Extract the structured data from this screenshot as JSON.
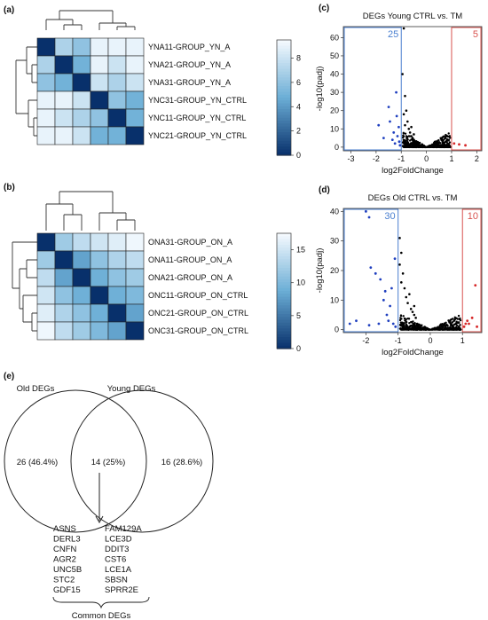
{
  "panels": {
    "a": {
      "label": "(a)"
    },
    "b": {
      "label": "(b)"
    },
    "c": {
      "label": "(c)"
    },
    "d": {
      "label": "(d)"
    },
    "e": {
      "label": "(e)"
    }
  },
  "chart_data": [
    {
      "panel": "(a)",
      "type": "heatmap",
      "rows": [
        "YNA11-GROUP_YN_A",
        "YNA21-GROUP_YN_A",
        "YNA31-GROUP_YN_A",
        "YNC31-GROUP_YN_CTRL",
        "YNC11-GROUP_YN_CTRL",
        "YNC21-GROUP_YN_CTRL"
      ],
      "values": [
        [
          0,
          7,
          6,
          9,
          9,
          9
        ],
        [
          7,
          0,
          5,
          9,
          8,
          9
        ],
        [
          6,
          5,
          0,
          8,
          7,
          8
        ],
        [
          9,
          9,
          8,
          0,
          6,
          5
        ],
        [
          9,
          8,
          7,
          6,
          0,
          5
        ],
        [
          9,
          9,
          8,
          5,
          5,
          0
        ]
      ],
      "colorbar_ticks": [
        0,
        2,
        4,
        6,
        8
      ],
      "colorbar_range": [
        0,
        9.5
      ],
      "colors": {
        "low": "#08306b",
        "mid": "#6baed6",
        "high": "#f7fbff"
      }
    },
    {
      "panel": "(b)",
      "type": "heatmap",
      "rows": [
        "ONA31-GROUP_ON_A",
        "ONA11-GROUP_ON_A",
        "ONA21-GROUP_ON_A",
        "ONC11-GROUP_ON_CTRL",
        "ONC21-GROUP_ON_CTRL",
        "ONC31-GROUP_ON_CTRL"
      ],
      "values": [
        [
          0,
          12,
          14,
          15,
          16,
          17
        ],
        [
          12,
          0,
          8,
          11,
          13,
          14
        ],
        [
          14,
          8,
          0,
          9,
          11,
          12
        ],
        [
          15,
          11,
          9,
          0,
          9,
          10
        ],
        [
          16,
          13,
          11,
          9,
          0,
          8
        ],
        [
          17,
          14,
          12,
          10,
          8,
          0
        ]
      ],
      "colorbar_ticks": [
        0,
        5,
        10,
        15
      ],
      "colorbar_range": [
        0,
        17.5
      ],
      "colors": {
        "low": "#08306b",
        "mid": "#6baed6",
        "high": "#f7fbff"
      }
    },
    {
      "panel": "(c)",
      "type": "scatter",
      "title": "DEGs Young CTRL vs. TM",
      "xlabel": "log2FoldChange",
      "ylabel": "-log10(padj)",
      "xlim": [
        -3.3,
        2.2
      ],
      "ylim": [
        -2,
        66
      ],
      "xticks": [
        -3,
        -2,
        -1,
        0,
        1,
        2
      ],
      "yticks": [
        0,
        10,
        20,
        30,
        40,
        50,
        60
      ],
      "down_count": "25",
      "up_count": "5",
      "thresholds": [
        -1,
        1
      ],
      "colors": {
        "down": "#1f3fbf",
        "up": "#d62728",
        "ns": "#000000",
        "down_box": "#4a7fd0",
        "up_box": "#d9534f"
      },
      "points_down": [
        [
          -1.9,
          12
        ],
        [
          -1.7,
          5
        ],
        [
          -1.5,
          22
        ],
        [
          -1.45,
          14
        ],
        [
          -1.35,
          4
        ],
        [
          -1.3,
          8
        ],
        [
          -1.25,
          2
        ],
        [
          -1.2,
          30
        ],
        [
          -1.18,
          17
        ],
        [
          -1.15,
          6
        ],
        [
          -1.1,
          11
        ],
        [
          -1.08,
          3
        ],
        [
          -1.05,
          1
        ]
      ],
      "points_up": [
        [
          1.1,
          2
        ],
        [
          1.3,
          1.5
        ],
        [
          1.55,
          1
        ]
      ],
      "points_ns": [
        [
          -0.95,
          40
        ],
        [
          -0.9,
          65
        ],
        [
          -0.85,
          28
        ],
        [
          -0.8,
          20
        ],
        [
          -0.75,
          14
        ],
        [
          -0.7,
          10
        ],
        [
          -0.65,
          8
        ],
        [
          -0.6,
          6
        ],
        [
          -0.55,
          5
        ],
        [
          -0.5,
          4
        ],
        [
          -0.45,
          3
        ],
        [
          -0.4,
          2.5
        ],
        [
          -0.9,
          18
        ],
        [
          -0.85,
          12
        ],
        [
          -0.6,
          11
        ],
        [
          -0.5,
          7
        ]
      ]
    },
    {
      "panel": "(d)",
      "type": "scatter",
      "title": "DEGs Old CTRL vs. TM",
      "xlabel": "log2FoldChange",
      "ylabel": "-log10(padj)",
      "xlim": [
        -2.7,
        1.6
      ],
      "ylim": [
        -1,
        41
      ],
      "xticks": [
        -2,
        -1,
        0,
        1
      ],
      "yticks": [
        0,
        10,
        20,
        30,
        40
      ],
      "down_count": "30",
      "up_count": "10",
      "thresholds": [
        -1,
        1
      ],
      "colors": {
        "down": "#1f3fbf",
        "up": "#d62728",
        "ns": "#000000",
        "down_box": "#4a7fd0",
        "up_box": "#d9534f"
      },
      "points_down": [
        [
          -2.0,
          40
        ],
        [
          -1.9,
          38
        ],
        [
          -1.85,
          21
        ],
        [
          -1.7,
          19
        ],
        [
          -1.55,
          17
        ],
        [
          -1.45,
          10
        ],
        [
          -1.4,
          13
        ],
        [
          -1.35,
          5
        ],
        [
          -1.3,
          3
        ],
        [
          -1.25,
          8
        ],
        [
          -1.2,
          14
        ],
        [
          -1.15,
          2
        ],
        [
          -1.1,
          24
        ],
        [
          -1.08,
          1
        ],
        [
          -2.5,
          2
        ],
        [
          -2.3,
          3
        ],
        [
          -1.6,
          2
        ],
        [
          -1.9,
          1.5
        ]
      ],
      "points_up": [
        [
          1.05,
          1
        ],
        [
          1.1,
          2
        ],
        [
          1.15,
          3
        ],
        [
          1.2,
          2
        ],
        [
          1.3,
          4
        ],
        [
          1.4,
          15
        ],
        [
          1.45,
          1
        ]
      ],
      "points_ns": [
        [
          -0.95,
          31
        ],
        [
          -0.9,
          26
        ],
        [
          -0.85,
          19
        ],
        [
          -0.8,
          14
        ],
        [
          -0.75,
          11
        ],
        [
          -0.7,
          9
        ],
        [
          -0.6,
          7
        ],
        [
          -0.55,
          6
        ],
        [
          -0.5,
          5
        ],
        [
          -0.45,
          4
        ],
        [
          -0.95,
          22
        ],
        [
          -0.9,
          16
        ],
        [
          -0.65,
          12
        ],
        [
          -0.5,
          8
        ]
      ]
    }
  ],
  "venn": {
    "left_title": "Old DEGs",
    "right_title": "Young DEGs",
    "left_only": "26 (46.4%)",
    "overlap": "14 (25%)",
    "right_only": "16 (28.6%)",
    "genes_col1": [
      "ASNS",
      "DERL3",
      "CNFN",
      "AGR2",
      "UNC5B",
      "STC2",
      "GDF15"
    ],
    "genes_col2": [
      "FAM129A",
      "LCE3D",
      "DDIT3",
      "CST6",
      "LCE1A",
      "SBSN",
      "SPRR2E"
    ],
    "common_label": "Common DEGs"
  }
}
